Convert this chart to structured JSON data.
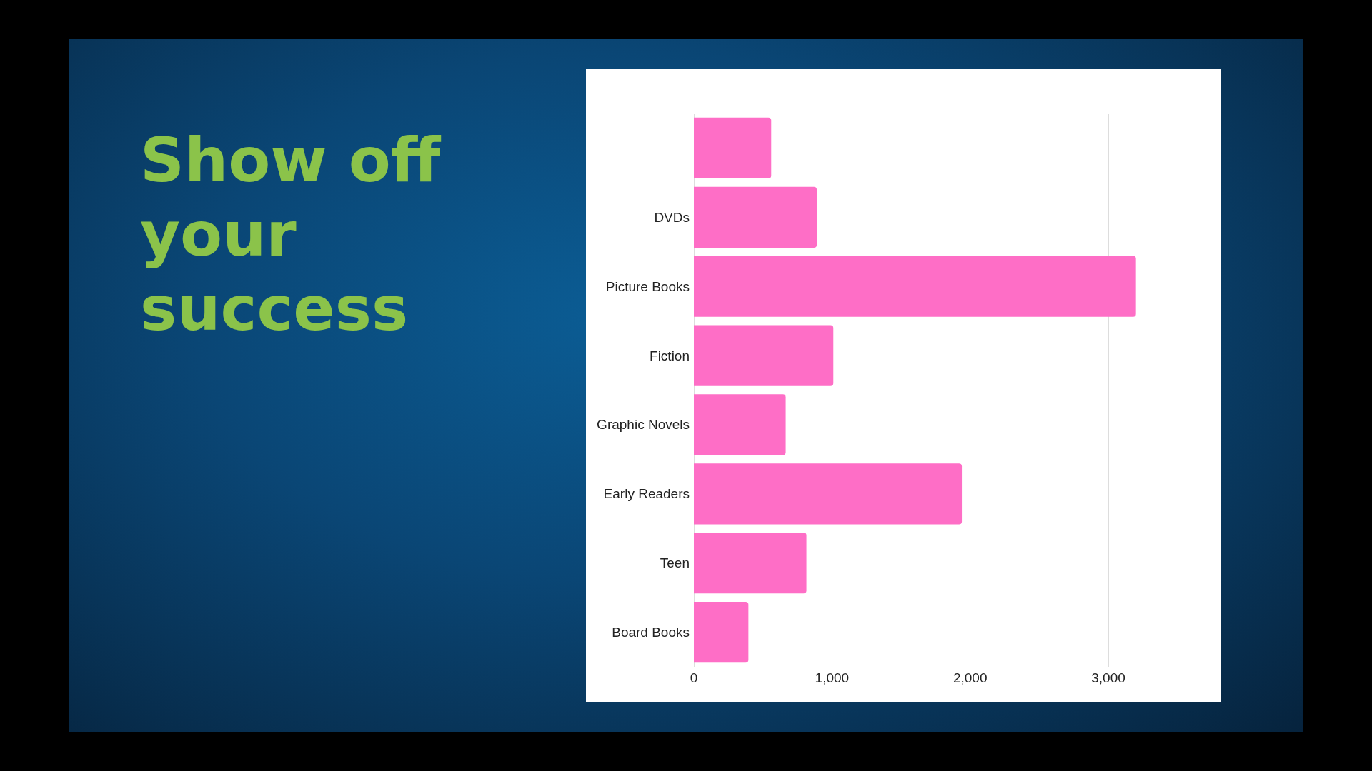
{
  "chart_data": {
    "type": "bar",
    "title": "Show off your success",
    "orientation": "horizontal",
    "categories": [
      null,
      "DVDs",
      "Picture Books",
      "Fiction",
      "Graphic Novels",
      "Early Readers",
      "Teen",
      "Board Books"
    ],
    "values": [
      560,
      890,
      3200,
      1010,
      665,
      1940,
      815,
      395
    ],
    "color": "#fe6ec6",
    "xlim": [
      0,
      3750
    ],
    "xticks": [
      0,
      {
        "value": 1000,
        "label": "1,000"
      },
      {
        "value": 2000,
        "label": "2,000"
      },
      {
        "value": 3000,
        "label": "3,000"
      }
    ],
    "grid": "x"
  }
}
